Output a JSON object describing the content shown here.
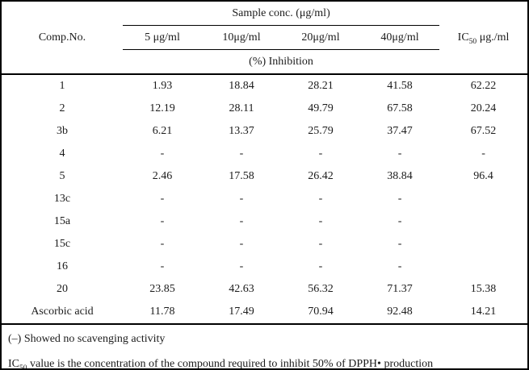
{
  "table": {
    "header": {
      "comp_no_label": "Comp.No.",
      "sample_conc_group_label": "Sample conc. (μg/ml)",
      "conc_columns": [
        "5 μg/ml",
        "10μg/ml",
        "20μg/ml",
        "40μg/ml"
      ],
      "ic50_prefix": "IC",
      "ic50_sub": "50",
      "ic50_suffix": " μg./ml",
      "inhibition_label": "(%) Inhibition"
    },
    "rows": [
      {
        "comp": "1",
        "values": [
          "1.93",
          "18.84",
          "28.21",
          "41.58"
        ],
        "ic50": "62.22"
      },
      {
        "comp": "2",
        "values": [
          "12.19",
          "28.11",
          "49.79",
          "67.58"
        ],
        "ic50": "20.24"
      },
      {
        "comp": "3b",
        "values": [
          "6.21",
          "13.37",
          "25.79",
          "37.47"
        ],
        "ic50": "67.52"
      },
      {
        "comp": "4",
        "values": [
          "-",
          "-",
          "-",
          "-"
        ],
        "ic50": "-"
      },
      {
        "comp": "5",
        "values": [
          "2.46",
          "17.58",
          "26.42",
          "38.84"
        ],
        "ic50": "96.4"
      },
      {
        "comp": "13c",
        "values": [
          "-",
          "-",
          "-",
          "-"
        ],
        "ic50": ""
      },
      {
        "comp": "15a",
        "values": [
          "-",
          "-",
          "-",
          "-"
        ],
        "ic50": ""
      },
      {
        "comp": "15c",
        "values": [
          "-",
          "-",
          "-",
          "-"
        ],
        "ic50": ""
      },
      {
        "comp": "16",
        "values": [
          "-",
          "-",
          "-",
          "-"
        ],
        "ic50": ""
      },
      {
        "comp": "20",
        "values": [
          "23.85",
          "42.63",
          "56.32",
          "71.37"
        ],
        "ic50": "15.38"
      },
      {
        "comp": "Ascorbic acid",
        "values": [
          "11.78",
          "17.49",
          "70.94",
          "92.48"
        ],
        "ic50": "14.21"
      }
    ]
  },
  "footnotes": {
    "note1": "(–) Showed no scavenging activity",
    "note2_prefix": "IC",
    "note2_sub": "50",
    "note2_text": " value is the concentration of the compound required to inhibit 50% of DPPH• production"
  },
  "colors": {
    "text": "#1b1b1b",
    "border": "#000000",
    "background": "#ffffff"
  }
}
